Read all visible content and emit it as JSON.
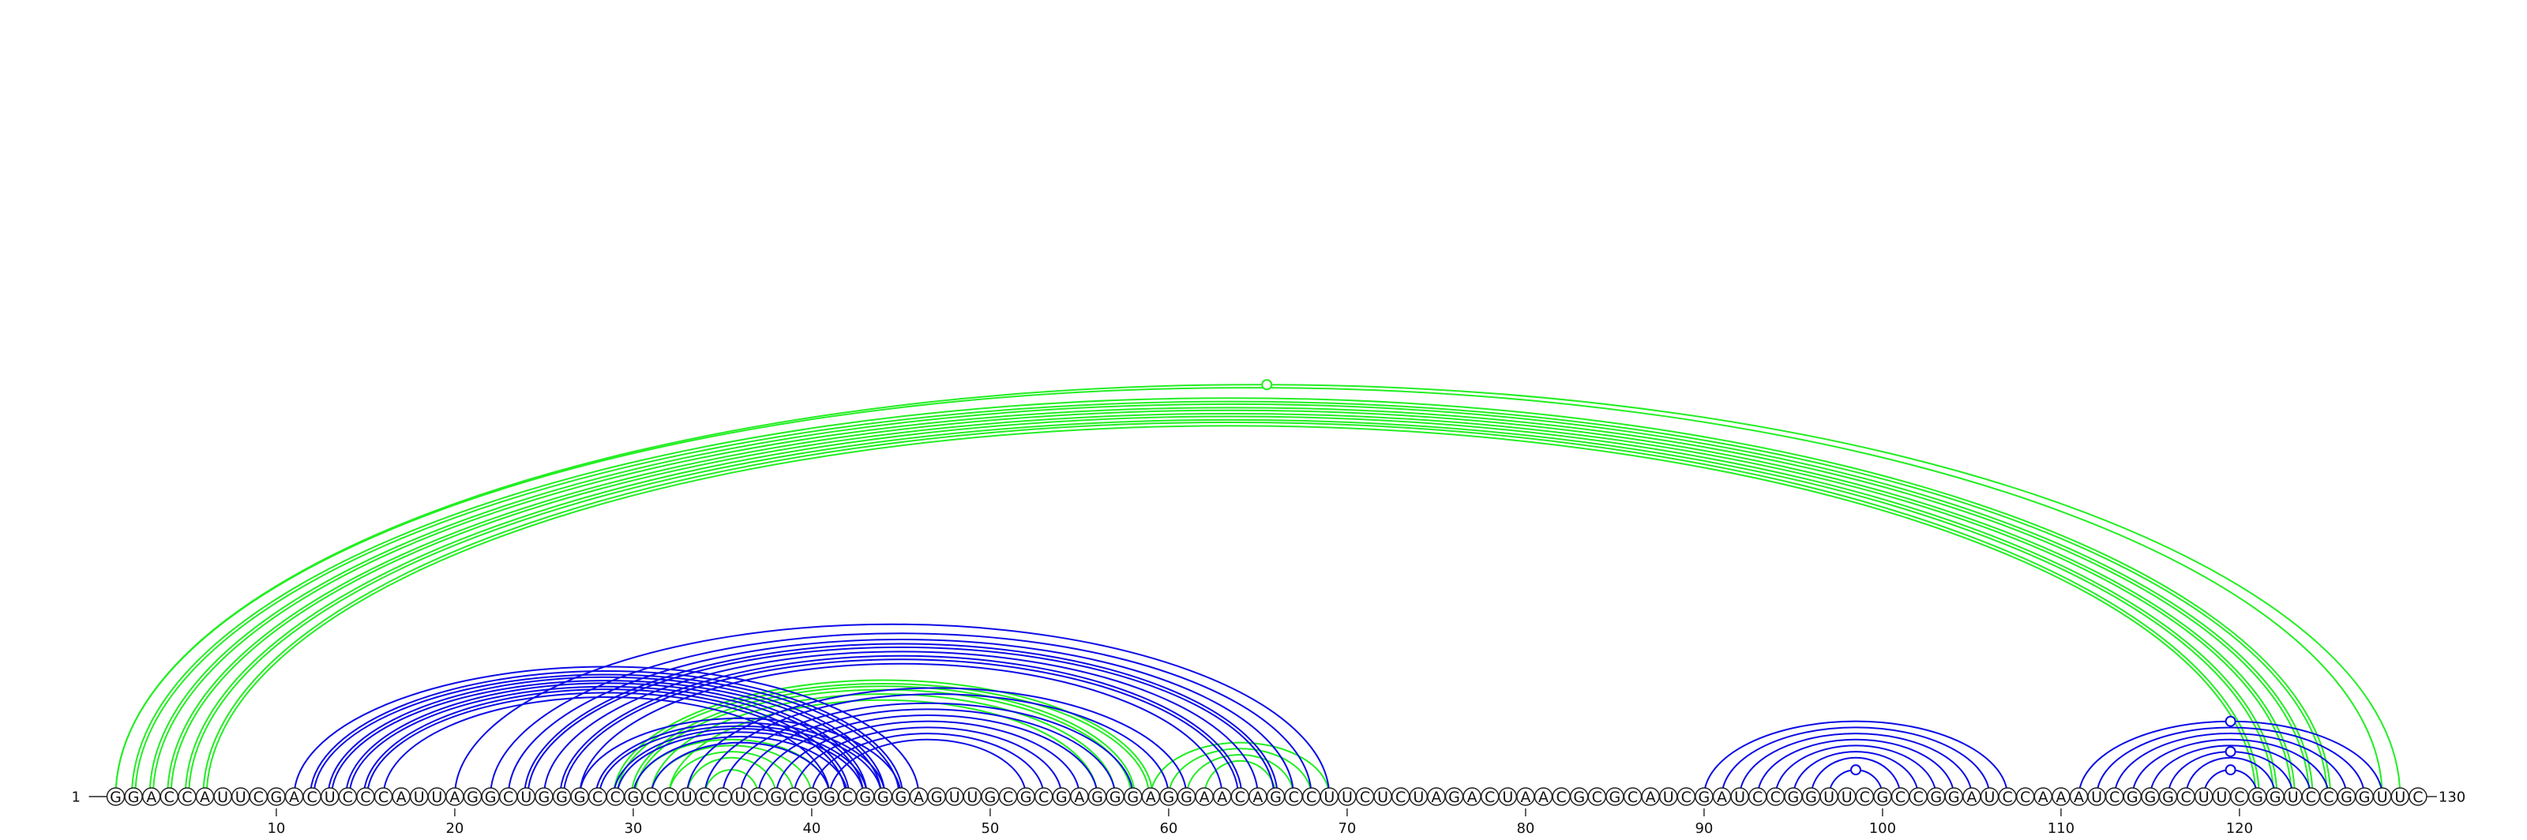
{
  "sequence": "GGACCAUUCGACUCCCAUUAGGCUGGGCCGCCUCCUCGCGGCGGGAGUUGCGCGAGGGAGGAACAGCCUUCUCUAGACUAACGCGCAUCGAUCCGGUUCGCCGGAUCCAAAUCGGGCUUCGGUCCGGUUC",
  "start_label": "1",
  "end_label": "130",
  "ticks": [
    10,
    20,
    30,
    40,
    50,
    60,
    70,
    80,
    90,
    100,
    110,
    120
  ],
  "colors": {
    "blue": "#0a0ae6",
    "green": "#22ee22"
  },
  "arcs": {
    "green": [
      [
        1,
        129,
        1
      ],
      [
        1,
        128,
        1
      ],
      [
        2,
        125,
        2
      ],
      [
        3,
        124,
        2
      ],
      [
        4,
        123,
        2
      ],
      [
        5,
        122,
        2
      ],
      [
        6,
        121,
        2
      ],
      [
        29,
        59,
        2
      ],
      [
        30,
        58,
        2
      ],
      [
        31,
        57,
        1
      ],
      [
        32,
        56,
        1
      ],
      [
        30,
        41,
        1
      ],
      [
        31,
        40,
        1
      ],
      [
        32,
        39,
        1
      ],
      [
        33,
        38,
        1
      ],
      [
        34,
        37,
        1
      ],
      [
        59,
        69,
        1
      ],
      [
        60,
        68,
        1
      ],
      [
        61,
        67,
        1
      ],
      [
        62,
        66,
        1
      ]
    ],
    "blue": [
      [
        11,
        46,
        1
      ],
      [
        12,
        45,
        2
      ],
      [
        13,
        44,
        2
      ],
      [
        14,
        43,
        2
      ],
      [
        15,
        42,
        2
      ],
      [
        16,
        41,
        1
      ],
      [
        20,
        69,
        1
      ],
      [
        22,
        68,
        1
      ],
      [
        23,
        67,
        1
      ],
      [
        24,
        66,
        2
      ],
      [
        25,
        65,
        1
      ],
      [
        26,
        64,
        2
      ],
      [
        27,
        63,
        1
      ],
      [
        27,
        45,
        1
      ],
      [
        28,
        44,
        2
      ],
      [
        29,
        43,
        2
      ],
      [
        30,
        42,
        1
      ],
      [
        31,
        41,
        1
      ],
      [
        33,
        61,
        1
      ],
      [
        34,
        60,
        1
      ],
      [
        35,
        58,
        1
      ],
      [
        36,
        57,
        1
      ],
      [
        37,
        56,
        1
      ],
      [
        38,
        55,
        1
      ],
      [
        39,
        54,
        1
      ],
      [
        40,
        53,
        1
      ],
      [
        41,
        52,
        1
      ],
      [
        90,
        107,
        1
      ],
      [
        91,
        106,
        1
      ],
      [
        92,
        105,
        1
      ],
      [
        93,
        104,
        1
      ],
      [
        94,
        103,
        1
      ],
      [
        95,
        102,
        1
      ],
      [
        96,
        101,
        1
      ],
      [
        97,
        100,
        1
      ],
      [
        111,
        128,
        1
      ],
      [
        112,
        127,
        1
      ],
      [
        113,
        126,
        1
      ],
      [
        114,
        125,
        1
      ],
      [
        115,
        124,
        1
      ],
      [
        116,
        123,
        1
      ],
      [
        117,
        122,
        1
      ],
      [
        118,
        121,
        1
      ]
    ]
  },
  "markers": [
    {
      "pos": 65.5,
      "arc": [
        1,
        129
      ],
      "color": "green"
    },
    {
      "pos": 119.5,
      "arc": [
        111,
        128
      ],
      "color": "blue"
    },
    {
      "pos": 119.5,
      "arc": [
        116,
        123
      ],
      "color": "blue"
    },
    {
      "pos": 119.5,
      "arc": [
        118,
        121
      ],
      "color": "blue"
    },
    {
      "pos": 98.5,
      "arc": [
        97,
        100
      ],
      "color": "blue"
    }
  ]
}
